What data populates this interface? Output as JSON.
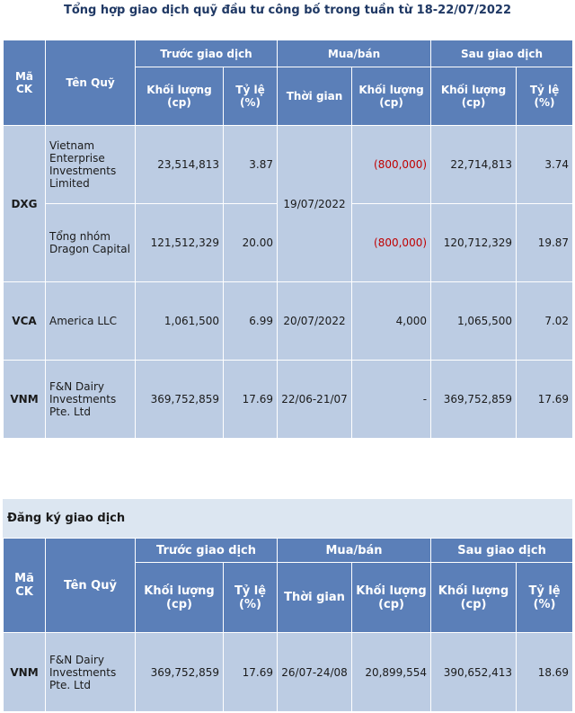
{
  "title": "Tổng hợp giao dịch quỹ đầu tư công bố trong tuần từ 18-22/07/2022",
  "headers": {
    "ma_ck": "Mã CK",
    "ten_quy": "Tên Quỹ",
    "truoc": "Trước giao dịch",
    "muaban": "Mua/bán",
    "sau": "Sau giao dịch",
    "khoi_luong": "Khối lượng (cp)",
    "ty_le": "Tỷ lệ (%)",
    "thoi_gian": "Thời gian"
  },
  "table1": {
    "rows": [
      {
        "code": "DXG",
        "fund": "Vietnam Enterprise Investments Limited",
        "before_vol": "23,514,813",
        "before_pct": "3.87",
        "date": "19/07/2022",
        "trade_vol": "(800,000)",
        "after_vol": "22,714,813",
        "after_pct": "3.74"
      },
      {
        "code": "",
        "fund": "Tổng nhóm Dragon Capital",
        "before_vol": "121,512,329",
        "before_pct": "20.00",
        "date": "",
        "trade_vol": "(800,000)",
        "after_vol": "120,712,329",
        "after_pct": "19.87"
      },
      {
        "code": "VCA",
        "fund": "America LLC",
        "before_vol": "1,061,500",
        "before_pct": "6.99",
        "date": "20/07/2022",
        "trade_vol": "4,000",
        "after_vol": "1,065,500",
        "after_pct": "7.02"
      },
      {
        "code": "VNM",
        "fund": "F&N Dairy Investments Pte. Ltd",
        "before_vol": "369,752,859",
        "before_pct": "17.69",
        "date": "22/06-21/07",
        "trade_vol": "-",
        "after_vol": "369,752,859",
        "after_pct": "17.69"
      }
    ]
  },
  "section2": {
    "title": "Đăng ký giao dịch",
    "rows": [
      {
        "code": "VNM",
        "fund": "F&N Dairy Investments Pte. Ltd",
        "before_vol": "369,752,859",
        "before_pct": "17.69",
        "date": "26/07-24/08",
        "trade_vol": "20,899,554",
        "after_vol": "390,652,413",
        "after_pct": "18.69"
      }
    ]
  }
}
